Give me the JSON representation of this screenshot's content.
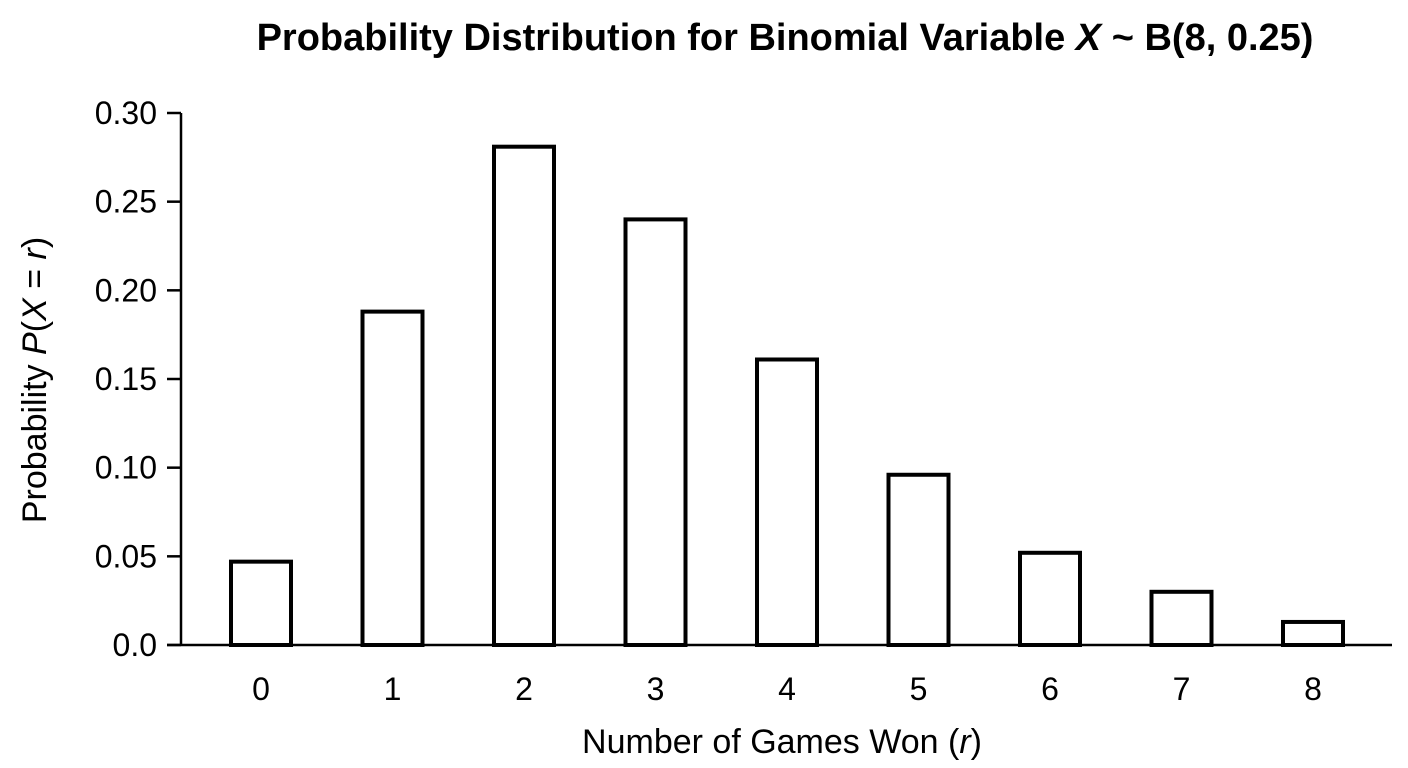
{
  "chart_data": {
    "type": "bar",
    "title": {
      "prefix": "Probability Distribution for Binomial Variable ",
      "variable": "X",
      "relation": " ~ ",
      "suffix": "B(8, 0.25)"
    },
    "xlabel": {
      "prefix": "Number of Games Won (",
      "variable": "r",
      "suffix": ")"
    },
    "ylabel": {
      "prefix": "Probability ",
      "func": "P",
      "open": "(",
      "var1": "X",
      "mid": " = ",
      "var2": "r",
      "close": ")"
    },
    "categories": [
      "0",
      "1",
      "2",
      "3",
      "4",
      "5",
      "6",
      "7",
      "8"
    ],
    "values": [
      0.047,
      0.188,
      0.281,
      0.24,
      0.161,
      0.096,
      0.052,
      0.03,
      0.013
    ],
    "ylim": [
      0,
      0.3
    ],
    "yticks": [
      {
        "value": 0.3,
        "label": "0.30"
      },
      {
        "value": 0.25,
        "label": "0.25"
      },
      {
        "value": 0.2,
        "label": "0.20"
      },
      {
        "value": 0.15,
        "label": "0.15"
      },
      {
        "value": 0.1,
        "label": "0.10"
      },
      {
        "value": 0.05,
        "label": "0.05"
      },
      {
        "value": 0.0,
        "label": "0.0"
      }
    ],
    "grid": false,
    "legend": "none",
    "bar_fill": "#ffffff",
    "bar_stroke": "#000000"
  }
}
